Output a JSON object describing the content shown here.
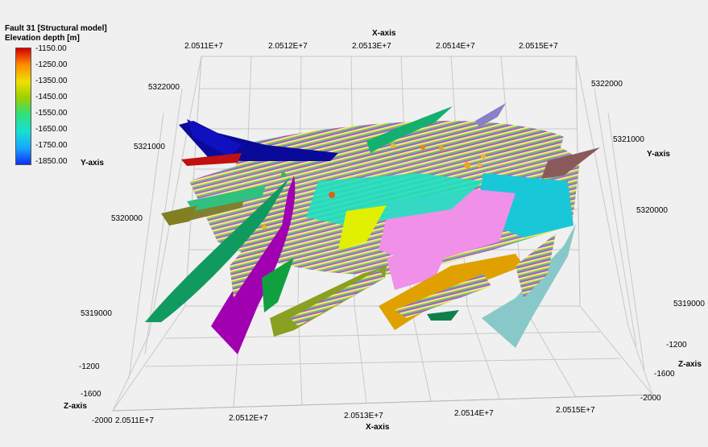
{
  "title": "Fault 31 [Structural model]",
  "subtitle": "Elevation depth [m]",
  "legend": {
    "ticks": [
      "-1150.00",
      "-1250.00",
      "-1350.00",
      "-1450.00",
      "-1550.00",
      "-1650.00",
      "-1750.00",
      "-1850.00"
    ],
    "colors": [
      "#d40000",
      "#ff8c00",
      "#f0e000",
      "#9ad000",
      "#2ee080",
      "#19e0d0",
      "#18a8ff",
      "#1030f0"
    ]
  },
  "axes": {
    "x_title_top": "X-axis",
    "x_title_bottom": "X-axis",
    "y_title_left": "Y-axis",
    "y_title_right": "Y-axis",
    "z_title_left": "Z-axis",
    "z_title_right": "Z-axis",
    "x_ticks_top": [
      "2.0511E+7",
      "2.0512E+7",
      "2.0513E+7",
      "2.0514E+7",
      "2.0515E+7"
    ],
    "x_ticks_bottom": [
      "2.0511E+7",
      "2.0512E+7",
      "2.0513E+7",
      "2.0514E+7",
      "2.0515E+7"
    ],
    "y_ticks_left": [
      "5322000",
      "5321000",
      "5320000",
      "5319000"
    ],
    "y_ticks_right": [
      "5322000",
      "5321000",
      "5320000",
      "5319000"
    ],
    "z_ticks_left": [
      "-1200",
      "-1600",
      "-2000"
    ],
    "z_ticks_right": [
      "-1200",
      "-1600",
      "-2000"
    ]
  }
}
